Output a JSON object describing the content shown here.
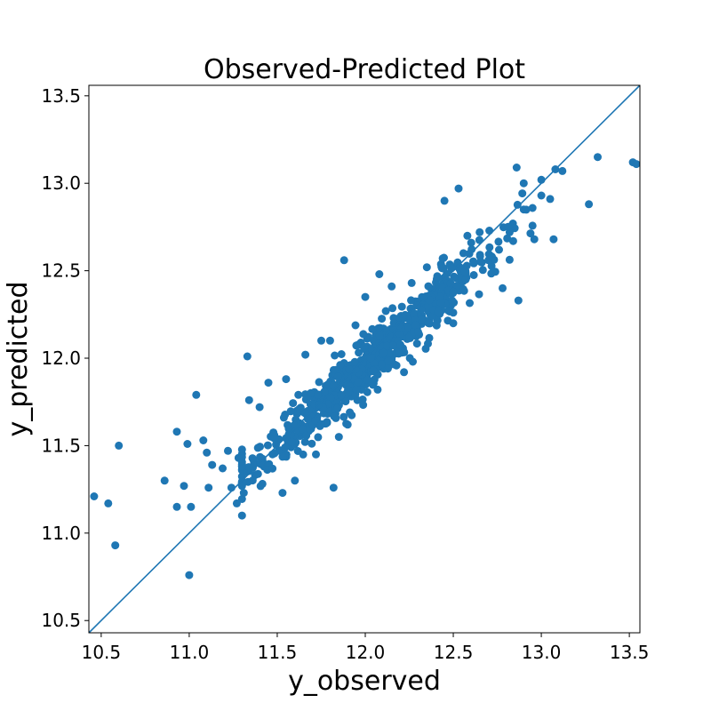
{
  "chart_data": {
    "type": "scatter",
    "title": "Observed-Predicted Plot",
    "xlabel": "y_observed",
    "ylabel": "y_predicted",
    "xlim": [
      10.43,
      13.56
    ],
    "ylim": [
      10.43,
      13.56
    ],
    "xticks": [
      "10.5",
      "11.0",
      "11.5",
      "12.0",
      "12.5",
      "13.0",
      "13.5"
    ],
    "yticks": [
      "10.5",
      "11.0",
      "11.5",
      "12.0",
      "12.5",
      "13.0",
      "13.5"
    ],
    "tick_values": [
      10.5,
      11.0,
      11.5,
      12.0,
      12.5,
      13.0,
      13.5
    ],
    "grid": false,
    "legend": "none",
    "point_color": "#1f77b4",
    "line_color": "#1f77b4",
    "reference_line": [
      [
        10.43,
        10.43
      ],
      [
        13.56,
        13.56
      ]
    ],
    "outliers": [
      [
        10.46,
        11.21
      ],
      [
        10.54,
        11.17
      ],
      [
        10.58,
        10.93
      ],
      [
        10.6,
        11.5
      ],
      [
        10.86,
        11.3
      ],
      [
        10.93,
        11.15
      ],
      [
        10.93,
        11.58
      ],
      [
        10.97,
        11.27
      ],
      [
        10.99,
        11.51
      ],
      [
        11.0,
        10.76
      ],
      [
        11.01,
        11.15
      ],
      [
        11.04,
        11.79
      ],
      [
        11.08,
        11.53
      ],
      [
        11.1,
        11.46
      ],
      [
        11.11,
        11.26
      ],
      [
        11.13,
        11.39
      ],
      [
        11.19,
        11.37
      ],
      [
        11.22,
        11.47
      ],
      [
        11.24,
        11.26
      ],
      [
        11.27,
        11.17
      ],
      [
        11.28,
        11.43
      ],
      [
        11.3,
        11.1
      ],
      [
        11.31,
        11.23
      ],
      [
        11.33,
        12.01
      ],
      [
        11.34,
        11.76
      ],
      [
        11.82,
        11.26
      ],
      [
        11.88,
        12.56
      ],
      [
        12.45,
        12.9
      ],
      [
        12.5,
        12.26
      ],
      [
        12.53,
        12.97
      ],
      [
        12.7,
        12.56
      ],
      [
        12.78,
        12.4
      ],
      [
        12.84,
        12.67
      ],
      [
        12.86,
        13.09
      ],
      [
        12.87,
        12.33
      ],
      [
        12.9,
        13.0
      ],
      [
        12.96,
        12.68
      ],
      [
        13.0,
        13.02
      ],
      [
        13.05,
        12.91
      ],
      [
        13.07,
        12.68
      ],
      [
        13.08,
        13.08
      ],
      [
        13.12,
        13.07
      ],
      [
        13.27,
        12.88
      ],
      [
        13.32,
        13.15
      ],
      [
        13.52,
        13.12
      ],
      [
        13.54,
        13.11
      ],
      [
        11.53,
        11.23
      ],
      [
        11.62,
        11.79
      ],
      [
        11.66,
        12.02
      ],
      [
        11.73,
        11.79
      ],
      [
        11.75,
        12.1
      ],
      [
        11.8,
        12.1
      ],
      [
        11.95,
        11.82
      ],
      [
        12.07,
        11.82
      ],
      [
        12.22,
        11.92
      ],
      [
        12.27,
        11.98
      ],
      [
        12.3,
        12.15
      ],
      [
        12.35,
        12.52
      ],
      [
        12.44,
        12.57
      ],
      [
        12.5,
        12.38
      ],
      [
        12.58,
        12.7
      ],
      [
        12.65,
        12.72
      ],
      [
        12.72,
        12.58
      ],
      [
        12.76,
        12.62
      ],
      [
        12.82,
        12.72
      ],
      [
        12.9,
        12.85
      ],
      [
        13.0,
        12.93
      ],
      [
        11.4,
        11.72
      ],
      [
        11.45,
        11.86
      ],
      [
        11.55,
        11.88
      ],
      [
        11.6,
        11.3
      ],
      [
        11.72,
        11.45
      ],
      [
        11.85,
        11.55
      ],
      [
        11.9,
        11.62
      ],
      [
        12.0,
        12.35
      ],
      [
        12.08,
        12.48
      ],
      [
        12.15,
        12.41
      ],
      [
        12.25,
        12.12
      ],
      [
        12.36,
        12.2
      ],
      [
        12.5,
        12.2
      ]
    ],
    "cluster": {
      "n_points": 780,
      "seed": 17,
      "x_range": [
        11.3,
        12.95
      ],
      "center_x": 12.03,
      "spread_x": 0.33,
      "slope": 0.92,
      "intercept_at_center": 11.99,
      "noise_sd": 0.075
    }
  }
}
